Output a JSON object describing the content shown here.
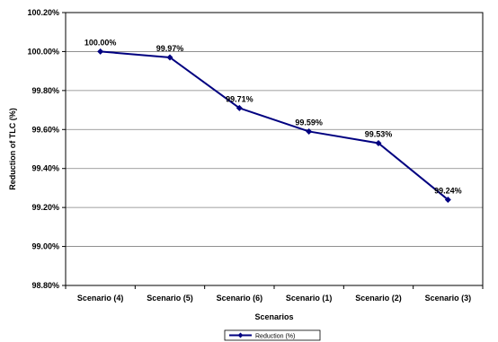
{
  "chart_data": {
    "type": "line",
    "categories": [
      "Scenario (4)",
      "Scenario (5)",
      "Scenario (6)",
      "Scenario (1)",
      "Scenario (2)",
      "Scenario (3)"
    ],
    "series": [
      {
        "name": "Reduction (%)",
        "values": [
          100.0,
          99.97,
          99.71,
          99.59,
          99.53,
          99.24
        ],
        "labels": [
          "100.00%",
          "99.97%",
          "99.71%",
          "99.59%",
          "99.53%",
          "99.24%"
        ],
        "color": "#000080",
        "marker": "diamond"
      }
    ],
    "xlabel": "Scenarios",
    "ylabel": "Reduction of TLC (%)",
    "ylim": [
      98.8,
      100.2
    ],
    "yticks": [
      98.8,
      99.0,
      99.2,
      99.4,
      99.6,
      99.8,
      100.0,
      100.2
    ],
    "ytick_labels": [
      "98.80%",
      "99.00%",
      "99.20%",
      "99.40%",
      "99.60%",
      "99.80%",
      "100.00%",
      "100.20%"
    ],
    "grid": "horizontal",
    "legend_position": "bottom-center",
    "frame_color": "#000000",
    "grid_color": "#808080"
  }
}
